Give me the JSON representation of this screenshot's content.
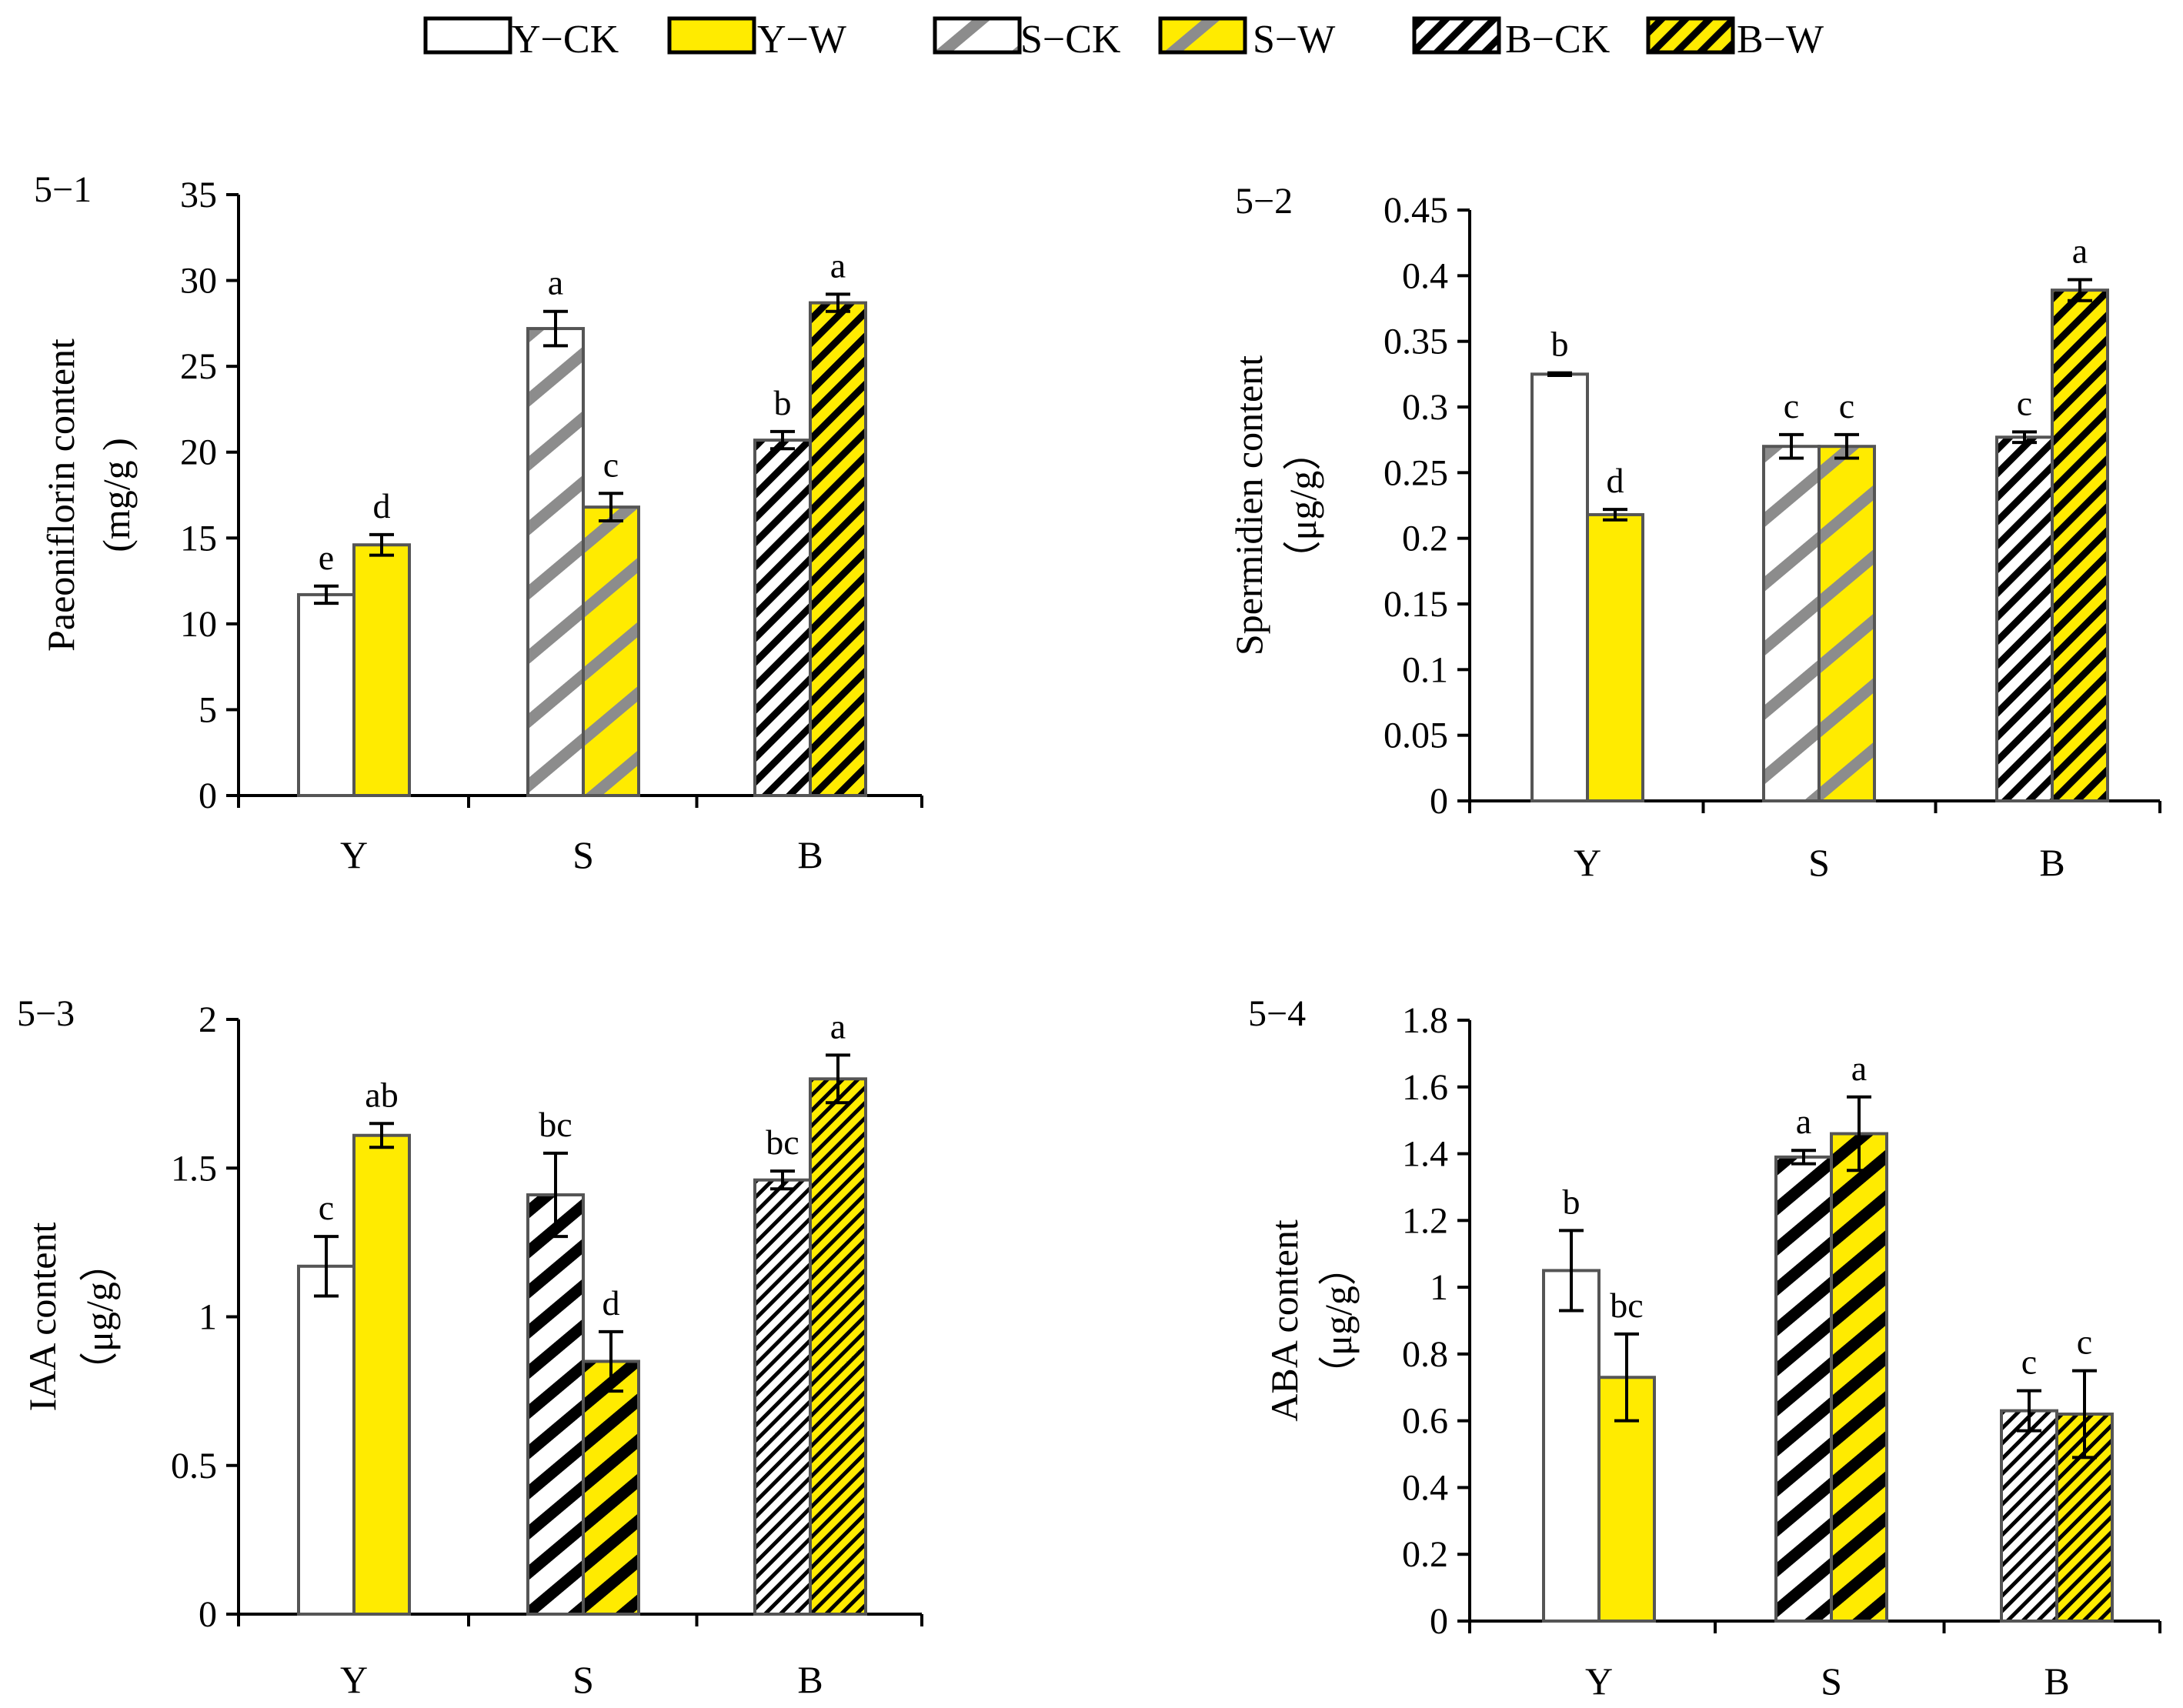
{
  "legend": {
    "items": [
      {
        "label": "Y−CK",
        "pattern": "y-ck"
      },
      {
        "label": "Y−W",
        "pattern": "y-w"
      },
      {
        "label": "S−CK",
        "pattern": "s-ck"
      },
      {
        "label": "S−W",
        "pattern": "s-w"
      },
      {
        "label": "B−CK",
        "pattern": "b-ck"
      },
      {
        "label": "B−W",
        "pattern": "b-w"
      }
    ]
  },
  "colors": {
    "yellow": "#FFEB00",
    "white": "#FFFFFF",
    "grey_stripe": "#8C8C8C",
    "black": "#000000",
    "bar_outline": "#555555"
  },
  "chart_data": [
    {
      "id": "5-1",
      "type": "bar",
      "panel_label": "5−1",
      "ylabel": "Paeoniflorin content",
      "yunit": "(mg/g )",
      "categories": [
        "Y",
        "S",
        "B"
      ],
      "ylim": [
        0,
        35
      ],
      "yticks": [
        0,
        5,
        10,
        15,
        20,
        25,
        30,
        35
      ],
      "ytick_labels": [
        "0",
        "5",
        "10",
        "15",
        "20",
        "25",
        "30",
        "35"
      ],
      "series": [
        {
          "name": "CK",
          "values": [
            11.7,
            27.2,
            20.7
          ],
          "errors": [
            0.5,
            1.0,
            0.5
          ],
          "letters": [
            "e",
            "a",
            "b"
          ],
          "patterns": [
            "y-ck",
            "s-ck",
            "b-ck"
          ]
        },
        {
          "name": "W",
          "values": [
            14.6,
            16.8,
            28.7
          ],
          "errors": [
            0.6,
            0.8,
            0.5
          ],
          "letters": [
            "d",
            "c",
            "a"
          ],
          "patterns": [
            "y-w",
            "s-w",
            "b-w"
          ]
        }
      ]
    },
    {
      "id": "5-2",
      "type": "bar",
      "panel_label": "5−2",
      "ylabel": "Spermidien content",
      "yunit": "（μg/g）",
      "categories": [
        "Y",
        "S",
        "B"
      ],
      "ylim": [
        0,
        0.45
      ],
      "yticks": [
        0,
        0.05,
        0.1,
        0.15,
        0.2,
        0.25,
        0.3,
        0.35,
        0.4,
        0.45
      ],
      "ytick_labels": [
        "0",
        "0.05",
        "0.1",
        "0.15",
        "0.2",
        "0.25",
        "0.3",
        "0.35",
        "0.4",
        "0.45"
      ],
      "series": [
        {
          "name": "CK",
          "values": [
            0.325,
            0.27,
            0.277
          ],
          "errors": [
            0.001,
            0.009,
            0.004
          ],
          "letters": [
            "b",
            "c",
            "c"
          ],
          "patterns": [
            "y-ck",
            "s-ck",
            "b-ck"
          ]
        },
        {
          "name": "W",
          "values": [
            0.218,
            0.27,
            0.389
          ],
          "errors": [
            0.004,
            0.009,
            0.008
          ],
          "letters": [
            "d",
            "c",
            "a"
          ],
          "patterns": [
            "y-w",
            "s-w",
            "b-w"
          ]
        }
      ]
    },
    {
      "id": "5-3",
      "type": "bar",
      "panel_label": "5−3",
      "ylabel": "IAA content",
      "yunit": "（μg/g）",
      "categories": [
        "Y",
        "S",
        "B"
      ],
      "ylim": [
        0,
        2
      ],
      "yticks": [
        0,
        0.5,
        1,
        1.5,
        2
      ],
      "ytick_labels": [
        "0",
        "0.5",
        "1",
        "1.5",
        "2"
      ],
      "series": [
        {
          "name": "CK",
          "values": [
            1.17,
            1.41,
            1.46
          ],
          "errors": [
            0.1,
            0.14,
            0.03
          ],
          "letters": [
            "c",
            "bc",
            "bc"
          ],
          "patterns": [
            "y-ck",
            "s-ck-heavy",
            "b-ck-fine"
          ]
        },
        {
          "name": "W",
          "values": [
            1.61,
            0.85,
            1.8
          ],
          "errors": [
            0.04,
            0.1,
            0.08
          ],
          "letters": [
            "ab",
            "d",
            "a"
          ],
          "patterns": [
            "y-w",
            "s-w-heavy",
            "b-w-fine"
          ]
        }
      ]
    },
    {
      "id": "5-4",
      "type": "bar",
      "panel_label": "5−4",
      "ylabel": "ABA content",
      "yunit": "（μg/g）",
      "categories": [
        "Y",
        "S",
        "B"
      ],
      "ylim": [
        0,
        1.8
      ],
      "yticks": [
        0,
        0.2,
        0.4,
        0.6,
        0.8,
        1,
        1.2,
        1.4,
        1.6,
        1.8
      ],
      "ytick_labels": [
        "0",
        "0.2",
        "0.4",
        "0.6",
        "0.8",
        "1",
        "1.2",
        "1.4",
        "1.6",
        "1.8"
      ],
      "series": [
        {
          "name": "CK",
          "values": [
            1.05,
            1.39,
            0.63
          ],
          "errors": [
            0.12,
            0.02,
            0.06
          ],
          "letters": [
            "b",
            "a",
            "c"
          ],
          "patterns": [
            "y-ck",
            "s-ck-heavy",
            "b-ck-fine"
          ]
        },
        {
          "name": "W",
          "values": [
            0.73,
            1.46,
            0.62
          ],
          "errors": [
            0.13,
            0.11,
            0.13
          ],
          "letters": [
            "bc",
            "a",
            "c"
          ],
          "patterns": [
            "y-w",
            "s-w-heavy",
            "b-w-fine"
          ]
        }
      ]
    }
  ]
}
